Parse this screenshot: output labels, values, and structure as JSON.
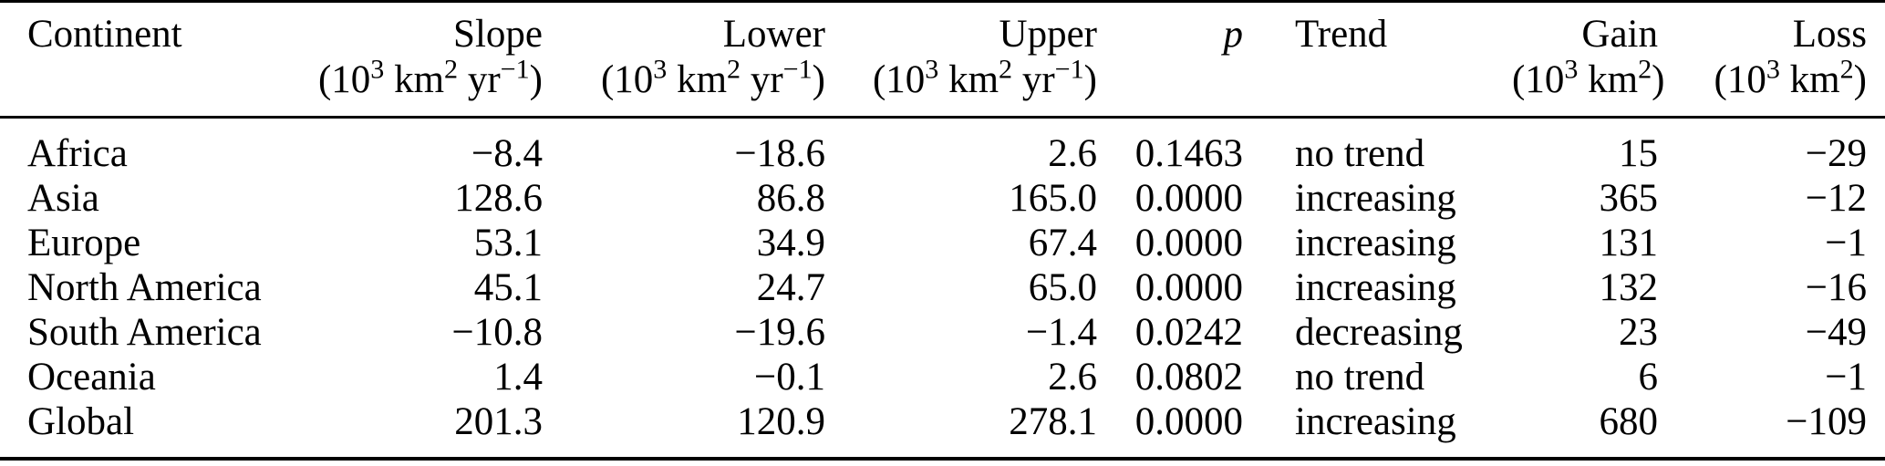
{
  "table": {
    "columns": [
      {
        "id": "continent",
        "label": "Continent",
        "unit_html": "",
        "italic": false
      },
      {
        "id": "slope",
        "label": "Slope",
        "unit_html": "(10<sup>3</sup> km<sup>2</sup> yr<sup>−1</sup>)",
        "italic": false
      },
      {
        "id": "lower",
        "label": "Lower",
        "unit_html": "(10<sup>3</sup> km<sup>2</sup> yr<sup>−1</sup>)",
        "italic": false
      },
      {
        "id": "upper",
        "label": "Upper",
        "unit_html": "(10<sup>3</sup> km<sup>2</sup> yr<sup>−1</sup>)",
        "italic": false
      },
      {
        "id": "p",
        "label": "p",
        "unit_html": "",
        "italic": true
      },
      {
        "id": "trend",
        "label": "Trend",
        "unit_html": "",
        "italic": false
      },
      {
        "id": "gain",
        "label": "Gain",
        "unit_html": "(10<sup>3</sup> km<sup>2</sup>)",
        "italic": false
      },
      {
        "id": "loss",
        "label": "Loss",
        "unit_html": "(10<sup>3</sup> km<sup>2</sup>)",
        "italic": false
      }
    ],
    "rows": [
      [
        "Africa",
        "−8.4",
        "−18.6",
        "2.6",
        "0.1463",
        "no trend",
        "15",
        "−29"
      ],
      [
        "Asia",
        "128.6",
        "86.8",
        "165.0",
        "0.0000",
        "increasing",
        "365",
        "−12"
      ],
      [
        "Europe",
        "53.1",
        "34.9",
        "67.4",
        "0.0000",
        "increasing",
        "131",
        "−1"
      ],
      [
        "North America",
        "45.1",
        "24.7",
        "65.0",
        "0.0000",
        "increasing",
        "132",
        "−16"
      ],
      [
        "South America",
        "−10.8",
        "−19.6",
        "−1.4",
        "0.0242",
        "decreasing",
        "23",
        "−49"
      ],
      [
        "Oceania",
        "1.4",
        "−0.1",
        "2.6",
        "0.0802",
        "no trend",
        "6",
        "−1"
      ],
      [
        "Global",
        "201.3",
        "120.9",
        "278.1",
        "0.0000",
        "increasing",
        "680",
        "−109"
      ]
    ]
  }
}
